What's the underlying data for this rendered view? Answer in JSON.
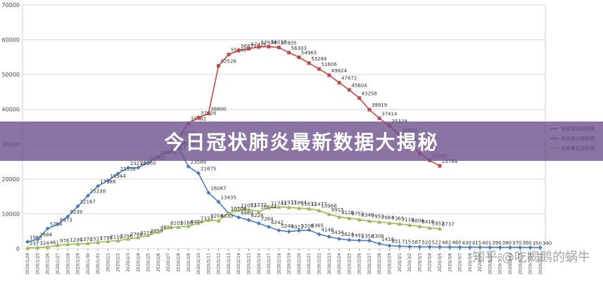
{
  "banner": {
    "title": "今日冠状肺炎最新数据大揭秘"
  },
  "watermark": {
    "text": "知乎 @吃喝鹅的蜗牛"
  },
  "chart_data": {
    "type": "line",
    "title": "",
    "xlabel": "",
    "ylabel": "",
    "ylim": [
      0,
      70000
    ],
    "yticks": [
      0,
      10000,
      20000,
      30000,
      40000,
      50000,
      60000,
      70000
    ],
    "grid": true,
    "legend_position": "right",
    "categories": [
      "2020/1/24",
      "2020/1/25",
      "2020/1/26",
      "2020/1/27",
      "2020/1/28",
      "2020/1/29",
      "2020/1/30",
      "2020/1/31",
      "2020/2/1",
      "2020/2/2",
      "2020/2/3",
      "2020/2/4",
      "2020/2/5",
      "2020/2/6",
      "2020/2/7",
      "2020/2/8",
      "2020/2/9",
      "2020/2/10",
      "2020/2/11",
      "2020/2/12",
      "2020/2/13",
      "2020/2/14",
      "2020/2/15",
      "2020/2/16",
      "2020/2/17",
      "2020/2/18",
      "2020/2/19",
      "2020/2/20",
      "2020/2/21",
      "2020/2/22",
      "2020/2/23",
      "2020/2/24",
      "2020/2/25",
      "2020/2/26",
      "2020/2/27",
      "2020/2/28",
      "2020/2/29",
      "2020/3/1",
      "2020/3/2",
      "2020/3/3",
      "2020/3/4",
      "2020/3/5",
      "2020/3/6",
      "2020/3/7",
      "2020/3/8",
      "2020/3/9",
      "2020/3/10",
      "2020/3/11",
      "2020/3/12",
      "2020/3/13",
      "2020/3/14",
      "2020/3/15"
    ],
    "series": [
      {
        "name": "现有疑似病例数",
        "color": "#4a7ebb",
        "marker": "diamond",
        "values": [
          1965,
          2684,
          5794,
          6973,
          9239,
          12167,
          15238,
          17988,
          19544,
          21558,
          23214,
          23260,
          24702,
          26359,
          27657,
          28942,
          23589,
          21675,
          16067,
          13435,
          10109,
          8969,
          8228,
          7264,
          6242,
          5248,
          4922,
          5206,
          5365,
          4148,
          3434,
          2824,
          2491,
          2358,
          2308,
          1418,
          851,
          715,
          587,
          520,
          522,
          482,
          460,
          430,
          415,
          401,
          390,
          380,
          370,
          360,
          350,
          340
        ]
      },
      {
        "name": "现有确诊病例数",
        "color": "#be4b48",
        "marker": "square",
        "values": [
          null,
          null,
          null,
          null,
          null,
          null,
          null,
          null,
          null,
          null,
          null,
          null,
          null,
          null,
          null,
          31774,
          35982,
          37626,
          38800,
          52526,
          55748,
          56873,
          57416,
          57934,
          58016,
          57805,
          56303,
          54965,
          53284,
          51606,
          49824,
          47672,
          45604,
          43258,
          39919,
          37414,
          35329,
          32652,
          30004,
          27433,
          25352,
          23784,
          null,
          null,
          null,
          null,
          null,
          null,
          null,
          null,
          null,
          null
        ]
      },
      {
        "name": "现有重症病例数",
        "color": "#98b954",
        "marker": "triangle",
        "values": [
          237,
          324,
          461,
          976,
          1239,
          1370,
          1527,
          1795,
          2110,
          2296,
          2788,
          3219,
          3859,
          4821,
          6101,
          6188,
          6484,
          7333,
          8204,
          8030,
          10204,
          11053,
          11272,
          10644,
          11741,
          11977,
          11864,
          11633,
          11477,
          10968,
          9915,
          9126,
          8752,
          8346,
          7952,
          7664,
          7365,
          7110,
          6806,
          6416,
          5952,
          5737,
          null,
          null,
          null,
          null,
          null,
          null,
          null,
          null,
          null,
          null
        ]
      }
    ]
  }
}
